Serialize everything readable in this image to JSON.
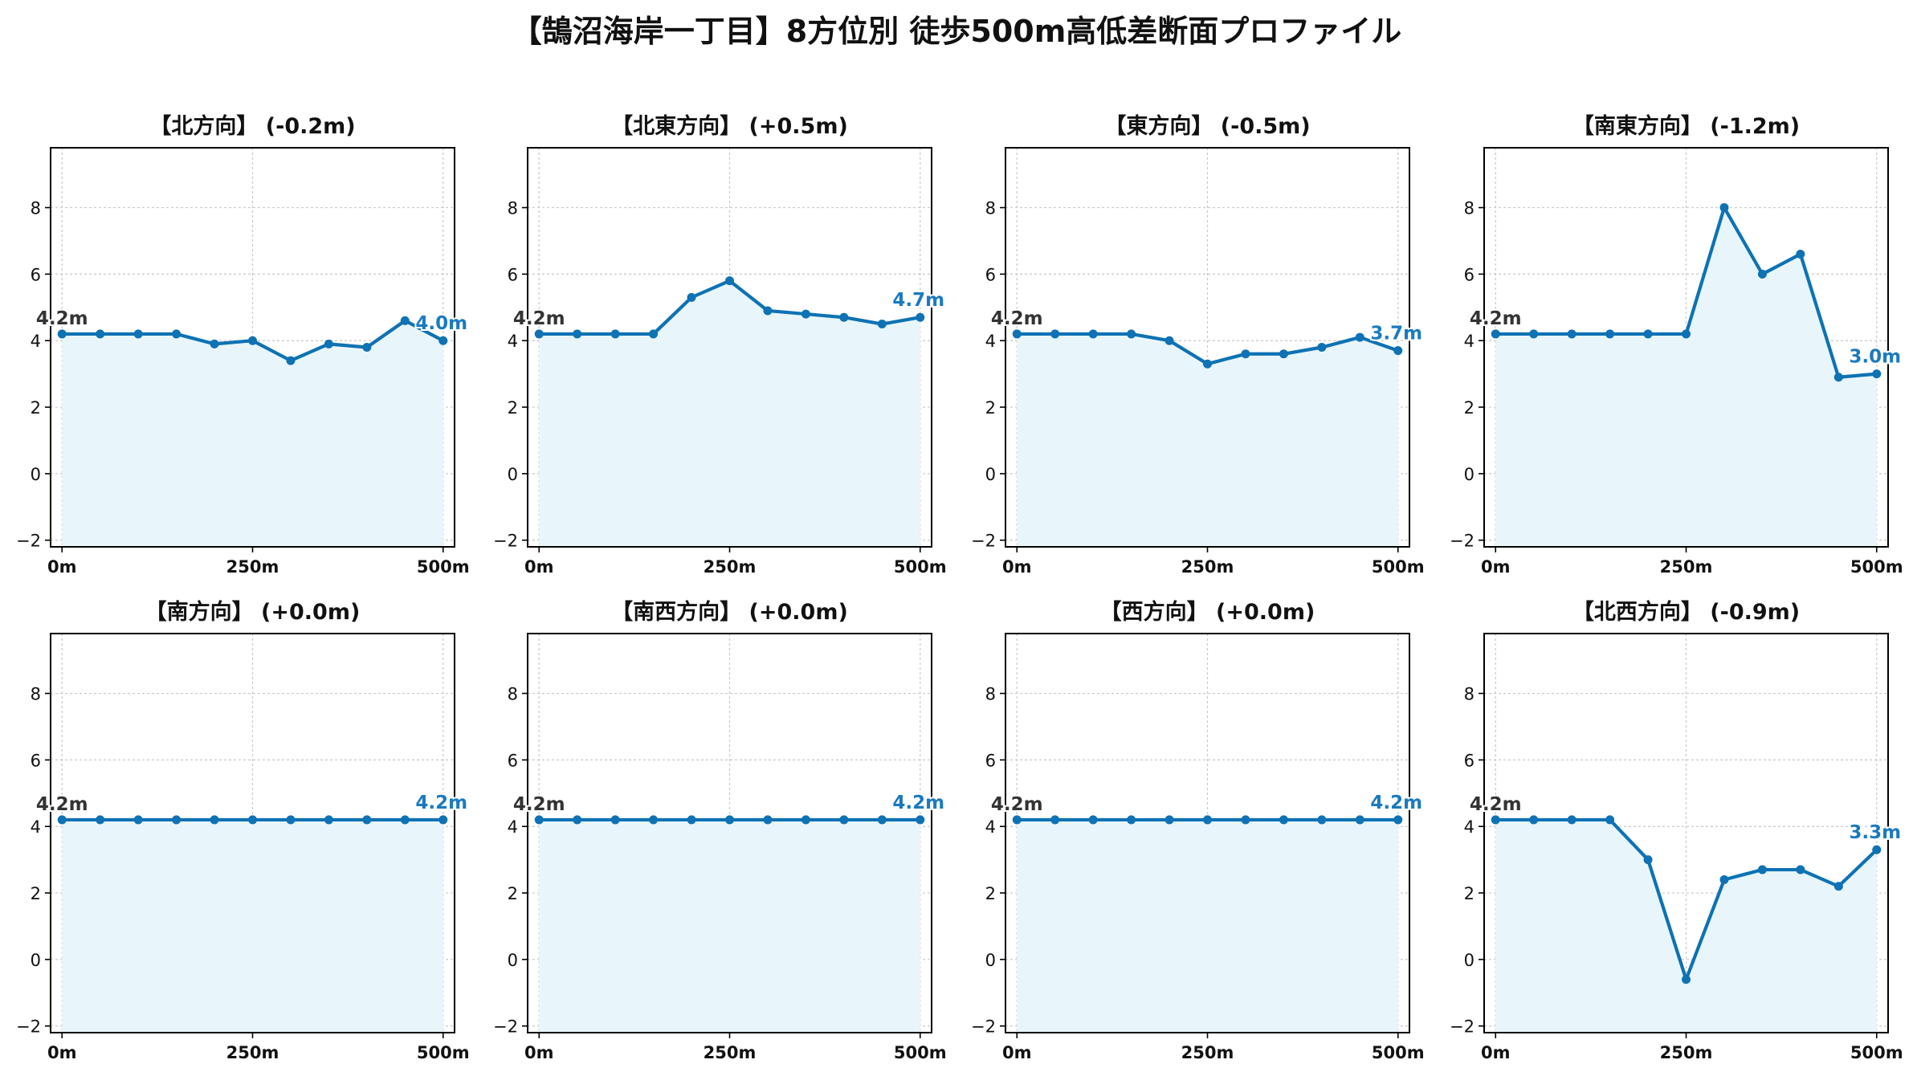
{
  "figure": {
    "title": "【鵠沼海岸一丁目】8方位別 徒歩500m高低差断面プロファイル"
  },
  "colors": {
    "line": "#0e72b4",
    "fill": "#e8f6fb",
    "grid": "#c8c8c8",
    "start_label": "#333333",
    "end_label": "#1a7abf"
  },
  "chart_data": [
    {
      "type": "line",
      "title": "【北方向】 (-0.2m)",
      "x": [
        0,
        50,
        100,
        150,
        200,
        250,
        300,
        350,
        400,
        450,
        500
      ],
      "series": [
        {
          "values": [
            4.2,
            4.2,
            4.2,
            4.2,
            3.9,
            4.0,
            3.4,
            3.9,
            3.8,
            4.6,
            4.0
          ]
        }
      ],
      "xticks": [
        "0m",
        "250m",
        "500m"
      ],
      "yticks": [
        "−2",
        "0",
        "2",
        "4",
        "6",
        "8"
      ],
      "xlim": [
        -15,
        515
      ],
      "ylim": [
        -2.2,
        9.8
      ],
      "grid": true,
      "fill_under": true,
      "start_label": "4.2m",
      "end_label": "4.0m"
    },
    {
      "type": "line",
      "title": "【北東方向】 (+0.5m)",
      "x": [
        0,
        50,
        100,
        150,
        200,
        250,
        300,
        350,
        400,
        450,
        500
      ],
      "series": [
        {
          "values": [
            4.2,
            4.2,
            4.2,
            4.2,
            5.3,
            5.8,
            4.9,
            4.8,
            4.7,
            4.5,
            4.7
          ]
        }
      ],
      "xticks": [
        "0m",
        "250m",
        "500m"
      ],
      "yticks": [
        "−2",
        "0",
        "2",
        "4",
        "6",
        "8"
      ],
      "xlim": [
        -15,
        515
      ],
      "ylim": [
        -2.2,
        9.8
      ],
      "grid": true,
      "fill_under": true,
      "start_label": "4.2m",
      "end_label": "4.7m"
    },
    {
      "type": "line",
      "title": "【東方向】 (-0.5m)",
      "x": [
        0,
        50,
        100,
        150,
        200,
        250,
        300,
        350,
        400,
        450,
        500
      ],
      "series": [
        {
          "values": [
            4.2,
            4.2,
            4.2,
            4.2,
            4.0,
            3.3,
            3.6,
            3.6,
            3.8,
            4.1,
            3.7
          ]
        }
      ],
      "xticks": [
        "0m",
        "250m",
        "500m"
      ],
      "yticks": [
        "−2",
        "0",
        "2",
        "4",
        "6",
        "8"
      ],
      "xlim": [
        -15,
        515
      ],
      "ylim": [
        -2.2,
        9.8
      ],
      "grid": true,
      "fill_under": true,
      "start_label": "4.2m",
      "end_label": "3.7m"
    },
    {
      "type": "line",
      "title": "【南東方向】 (-1.2m)",
      "x": [
        0,
        50,
        100,
        150,
        200,
        250,
        300,
        350,
        400,
        450,
        500
      ],
      "series": [
        {
          "values": [
            4.2,
            4.2,
            4.2,
            4.2,
            4.2,
            4.2,
            8.0,
            6.0,
            6.6,
            2.9,
            3.0
          ]
        }
      ],
      "xticks": [
        "0m",
        "250m",
        "500m"
      ],
      "yticks": [
        "−2",
        "0",
        "2",
        "4",
        "6",
        "8"
      ],
      "xlim": [
        -15,
        515
      ],
      "ylim": [
        -2.2,
        9.8
      ],
      "grid": true,
      "fill_under": true,
      "start_label": "4.2m",
      "end_label": "3.0m"
    },
    {
      "type": "line",
      "title": "【南方向】 (+0.0m)",
      "x": [
        0,
        50,
        100,
        150,
        200,
        250,
        300,
        350,
        400,
        450,
        500
      ],
      "series": [
        {
          "values": [
            4.2,
            4.2,
            4.2,
            4.2,
            4.2,
            4.2,
            4.2,
            4.2,
            4.2,
            4.2,
            4.2
          ]
        }
      ],
      "xticks": [
        "0m",
        "250m",
        "500m"
      ],
      "yticks": [
        "−2",
        "0",
        "2",
        "4",
        "6",
        "8"
      ],
      "xlim": [
        -15,
        515
      ],
      "ylim": [
        -2.2,
        9.8
      ],
      "grid": true,
      "fill_under": true,
      "start_label": "4.2m",
      "end_label": "4.2m"
    },
    {
      "type": "line",
      "title": "【南西方向】 (+0.0m)",
      "x": [
        0,
        50,
        100,
        150,
        200,
        250,
        300,
        350,
        400,
        450,
        500
      ],
      "series": [
        {
          "values": [
            4.2,
            4.2,
            4.2,
            4.2,
            4.2,
            4.2,
            4.2,
            4.2,
            4.2,
            4.2,
            4.2
          ]
        }
      ],
      "xticks": [
        "0m",
        "250m",
        "500m"
      ],
      "yticks": [
        "−2",
        "0",
        "2",
        "4",
        "6",
        "8"
      ],
      "xlim": [
        -15,
        515
      ],
      "ylim": [
        -2.2,
        9.8
      ],
      "grid": true,
      "fill_under": true,
      "start_label": "4.2m",
      "end_label": "4.2m"
    },
    {
      "type": "line",
      "title": "【西方向】 (+0.0m)",
      "x": [
        0,
        50,
        100,
        150,
        200,
        250,
        300,
        350,
        400,
        450,
        500
      ],
      "series": [
        {
          "values": [
            4.2,
            4.2,
            4.2,
            4.2,
            4.2,
            4.2,
            4.2,
            4.2,
            4.2,
            4.2,
            4.2
          ]
        }
      ],
      "xticks": [
        "0m",
        "250m",
        "500m"
      ],
      "yticks": [
        "−2",
        "0",
        "2",
        "4",
        "6",
        "8"
      ],
      "xlim": [
        -15,
        515
      ],
      "ylim": [
        -2.2,
        9.8
      ],
      "grid": true,
      "fill_under": true,
      "start_label": "4.2m",
      "end_label": "4.2m"
    },
    {
      "type": "line",
      "title": "【北西方向】 (-0.9m)",
      "x": [
        0,
        50,
        100,
        150,
        200,
        250,
        300,
        350,
        400,
        450,
        500
      ],
      "series": [
        {
          "values": [
            4.2,
            4.2,
            4.2,
            4.2,
            3.0,
            -0.6,
            2.4,
            2.7,
            2.7,
            2.2,
            3.3
          ]
        }
      ],
      "xticks": [
        "0m",
        "250m",
        "500m"
      ],
      "yticks": [
        "−2",
        "0",
        "2",
        "4",
        "6",
        "8"
      ],
      "xlim": [
        -15,
        515
      ],
      "ylim": [
        -2.2,
        9.8
      ],
      "grid": true,
      "fill_under": true,
      "start_label": "4.2m",
      "end_label": "3.3m"
    }
  ]
}
